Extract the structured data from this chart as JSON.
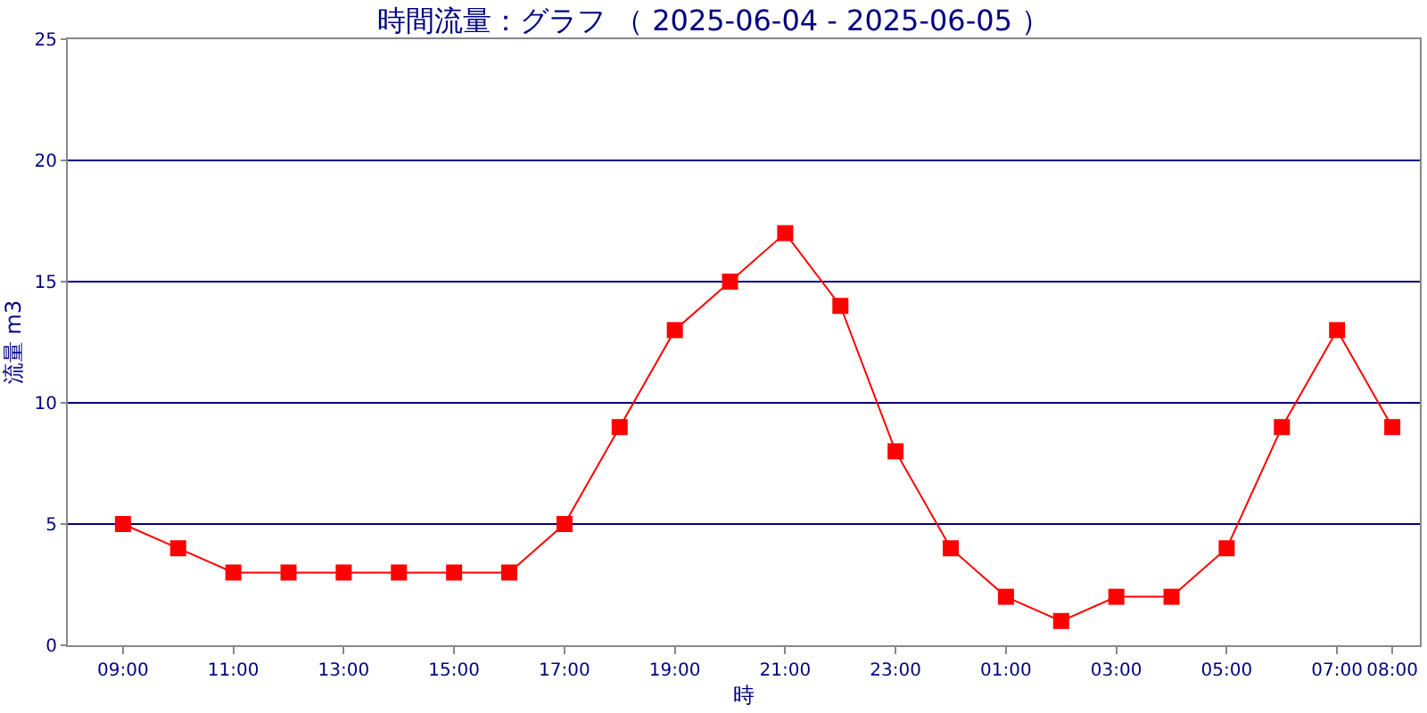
{
  "chart_data": {
    "type": "line",
    "title": "時間流量：グラフ （ 2025-06-04 - 2025-06-05 ）",
    "xlabel": "時",
    "ylabel": "流量 m3",
    "categories": [
      "09:00",
      null,
      "11:00",
      null,
      "13:00",
      null,
      "15:00",
      null,
      "17:00",
      null,
      "19:00",
      null,
      "21:00",
      null,
      "23:00",
      null,
      "01:00",
      null,
      "03:00",
      null,
      "05:00",
      null,
      "07:00",
      "08:00"
    ],
    "series": [
      {
        "color": "#ff0000",
        "values": [
          5,
          4,
          3,
          3,
          3,
          3,
          3,
          3,
          5,
          9,
          13,
          15,
          17,
          14,
          8,
          4,
          2,
          1,
          2,
          2,
          4,
          9,
          13,
          9
        ]
      }
    ],
    "ylim": [
      0,
      25
    ],
    "yticks": [
      0,
      5,
      10,
      15,
      20,
      25
    ],
    "grid": "y",
    "marker": "square",
    "line_style": "solid"
  }
}
